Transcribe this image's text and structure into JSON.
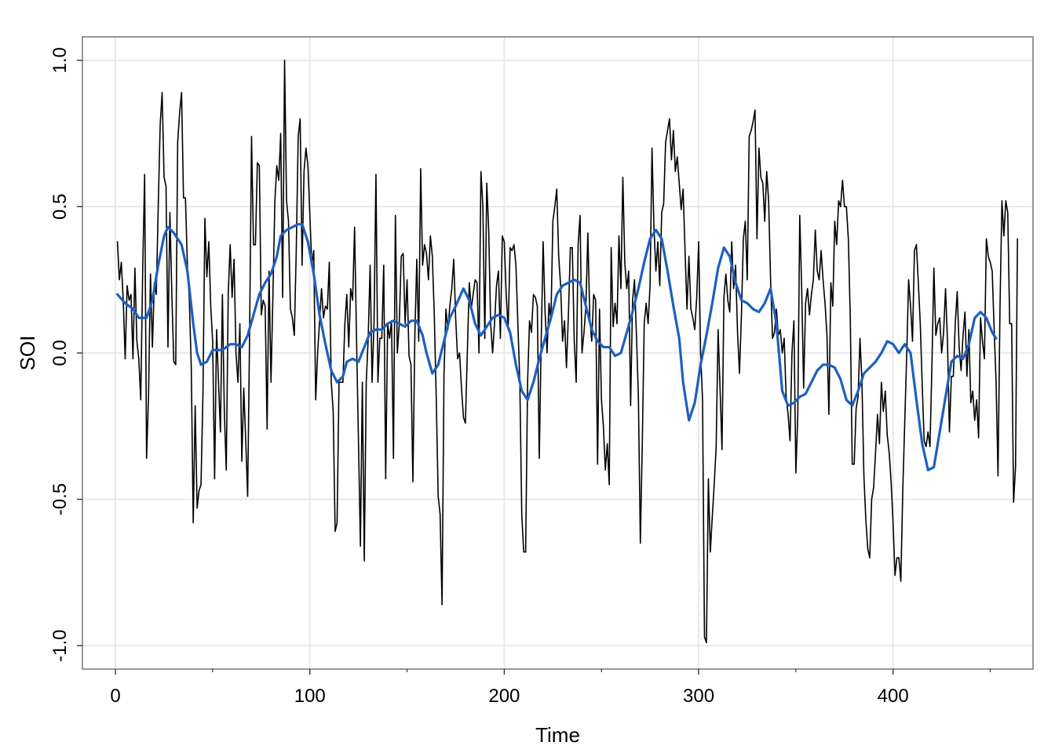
{
  "chart_data": {
    "type": "line",
    "xlabel": "Time",
    "ylabel": "SOI",
    "xlim": [
      -17,
      472
    ],
    "ylim": [
      -1.08,
      1.08
    ],
    "x_ticks": [
      0,
      100,
      200,
      300,
      400
    ],
    "x_minor_ticks": [
      50,
      150,
      250,
      350,
      450
    ],
    "y_ticks": [
      -1.0,
      -0.5,
      0.0,
      0.5,
      1.0
    ],
    "x_tick_labels": [
      "0",
      "100",
      "200",
      "300",
      "400"
    ],
    "y_tick_labels": [
      "-1.0",
      "-0.5",
      "0.0",
      "0.5",
      "1.0"
    ],
    "grid": true,
    "series": [
      {
        "color": "#000000",
        "x_start": 1,
        "x_step": 1,
        "values": [
          0.38,
          0.25,
          0.31,
          0.18,
          -0.02,
          0.23,
          0.18,
          0.2,
          -0.02,
          0.29,
          0.04,
          -0.02,
          -0.16,
          0.28,
          0.61,
          -0.36,
          -0.15,
          0.27,
          0.02,
          0.24,
          0.2,
          0.5,
          0.78,
          0.89,
          0.6,
          0.57,
          0.02,
          0.48,
          0.2,
          -0.03,
          -0.04,
          0.72,
          0.82,
          0.89,
          0.53,
          0.53,
          0.3,
          0.18,
          -0.05,
          -0.58,
          -0.18,
          -0.53,
          -0.47,
          -0.45,
          -0.14,
          0.46,
          0.26,
          0.38,
          0.16,
          0.04,
          -0.43,
          0.08,
          -0.1,
          -0.27,
          0.2,
          -0.2,
          -0.4,
          0.2,
          0.37,
          0.19,
          0.32,
          0.0,
          -0.1,
          0.1,
          -0.37,
          -0.12,
          -0.3,
          -0.49,
          0.07,
          0.74,
          0.37,
          0.37,
          0.65,
          0.64,
          0.13,
          0.18,
          0.16,
          -0.26,
          0.28,
          -0.1,
          0.2,
          0.52,
          0.64,
          0.59,
          0.75,
          0.19,
          1.0,
          0.52,
          0.45,
          0.15,
          0.12,
          0.06,
          0.35,
          0.74,
          0.8,
          0.3,
          0.62,
          0.7,
          0.64,
          0.47,
          0.3,
          0.35,
          -0.16,
          0.0,
          0.11,
          0.22,
          0.12,
          0.16,
          0.15,
          0.31,
          -0.1,
          -0.2,
          -0.61,
          -0.58,
          -0.1,
          -0.1,
          -0.1,
          0.1,
          0.2,
          0.02,
          0.22,
          0.18,
          0.43,
          0.05,
          -0.3,
          -0.66,
          -0.1,
          -0.71,
          -0.1,
          0.05,
          0.3,
          -0.1,
          0.1,
          0.61,
          -0.1,
          0.05,
          0.05,
          0.3,
          -0.43,
          0.1,
          0.05,
          0.11,
          -0.36,
          0.47,
          0.0,
          0.1,
          0.33,
          0.34,
          0.1,
          0.25,
          -0.01,
          -0.04,
          -0.44,
          0.06,
          0.32,
          0.04,
          0.63,
          0.3,
          0.37,
          0.34,
          0.25,
          0.4,
          0.33,
          0.13,
          -0.15,
          -0.49,
          -0.55,
          -0.86,
          -0.07,
          0.15,
          0.08,
          0.16,
          0.22,
          0.32,
          0.12,
          -0.02,
          0.0,
          -0.12,
          -0.22,
          -0.24,
          0.0,
          0.24,
          0.15,
          0.2,
          0.25,
          0.24,
          0.0,
          0.62,
          0.5,
          0.05,
          0.58,
          0.42,
          0.1,
          0.0,
          0.1,
          0.23,
          0.28,
          0.05,
          0.4,
          0.38,
          0.2,
          0.08,
          0.36,
          0.35,
          0.37,
          0.3,
          0.1,
          -0.1,
          -0.55,
          -0.68,
          -0.68,
          -0.1,
          0.11,
          0.07,
          0.2,
          0.19,
          0.16,
          -0.36,
          0.04,
          0.38,
          0.14,
          0.0,
          0.17,
          0.11,
          0.45,
          0.5,
          0.56,
          0.33,
          0.23,
          0.04,
          0.11,
          -0.05,
          0.13,
          0.36,
          0.36,
          0.04,
          -0.1,
          0.37,
          0.47,
          0.0,
          0.07,
          0.16,
          0.41,
          0.12,
          0.04,
          0.2,
          0.18,
          -0.38,
          0.15,
          -0.16,
          -0.25,
          -0.4,
          -0.31,
          -0.45,
          0.36,
          0.09,
          0.17,
          0.1,
          0.4,
          0.22,
          0.6,
          0.31,
          0.22,
          0.28,
          -0.18,
          0.18,
          0.25,
          0.06,
          -0.15,
          -0.65,
          -0.31,
          0.1,
          0.17,
          0.1,
          0.23,
          0.7,
          0.43,
          0.28,
          0.38,
          0.23,
          0.48,
          0.51,
          0.72,
          0.76,
          0.8,
          0.66,
          0.76,
          0.62,
          0.67,
          0.58,
          0.49,
          0.56,
          0.35,
          0.15,
          0.33,
          0.15,
          0.12,
          0.08,
          0.19,
          0.38,
          0.0,
          -0.16,
          -0.97,
          -0.99,
          -0.43,
          -0.68,
          -0.56,
          -0.45,
          -0.32,
          0.08,
          -0.12,
          -0.33,
          0.19,
          0.27,
          0.18,
          0.14,
          0.38,
          0.22,
          0.3,
          0.07,
          -0.07,
          0.13,
          0.39,
          0.45,
          0.25,
          0.74,
          0.76,
          0.79,
          0.83,
          0.39,
          0.7,
          0.6,
          0.58,
          0.45,
          0.62,
          0.52,
          0.25,
          0.05,
          0.07,
          0.15,
          0.06,
          0.08,
          0.0,
          0.05,
          -0.15,
          -0.21,
          -0.3,
          0.0,
          0.11,
          -0.41,
          -0.21,
          0.47,
          0.22,
          -0.12,
          0.17,
          0.22,
          0.13,
          0.2,
          0.25,
          0.42,
          0.28,
          0.25,
          0.35,
          0.25,
          0.17,
          0.06,
          -0.21,
          0.24,
          0.16,
          0.45,
          0.37,
          0.52,
          0.5,
          0.59,
          0.5,
          0.5,
          0.39,
          0.12,
          -0.38,
          -0.38,
          -0.19,
          -0.15,
          0.05,
          -0.1,
          -0.42,
          -0.57,
          -0.67,
          -0.7,
          -0.5,
          -0.46,
          -0.34,
          -0.21,
          -0.31,
          -0.1,
          -0.2,
          -0.13,
          -0.28,
          -0.34,
          -0.44,
          -0.58,
          -0.76,
          -0.7,
          -0.7,
          -0.78,
          -0.47,
          -0.24,
          -0.01,
          0.25,
          0.16,
          0.04,
          0.35,
          0.37,
          0.24,
          0.1,
          -0.11,
          -0.3,
          -0.32,
          -0.27,
          -0.32,
          -0.04,
          0.29,
          0.06,
          0.1,
          0.12,
          0.0,
          0.07,
          0.22,
          0.04,
          -0.27,
          -0.08,
          -0.08,
          0.1,
          0.21,
          0.02,
          -0.06,
          0.06,
          0.14,
          -0.08,
          0.08,
          -0.17,
          -0.13,
          -0.23,
          -0.16,
          -0.29,
          0.12,
          0.04,
          -0.02,
          0.39,
          0.33,
          0.31,
          0.28,
          0.08,
          -0.1,
          -0.42,
          0.15,
          0.52,
          0.4,
          0.52,
          0.48,
          0.1,
          0.1,
          -0.51,
          -0.39,
          0.39
        ]
      },
      {
        "color": "#1f5fbf",
        "values_xy": [
          [
            1,
            0.2
          ],
          [
            5,
            0.17
          ],
          [
            9,
            0.15
          ],
          [
            12,
            0.12
          ],
          [
            16,
            0.12
          ],
          [
            19,
            0.18
          ],
          [
            22,
            0.3
          ],
          [
            25,
            0.4
          ],
          [
            27,
            0.43
          ],
          [
            30,
            0.41
          ],
          [
            34,
            0.37
          ],
          [
            37,
            0.28
          ],
          [
            40,
            0.1
          ],
          [
            42,
            0.0
          ],
          [
            44,
            -0.04
          ],
          [
            47,
            -0.03
          ],
          [
            50,
            0.01
          ],
          [
            55,
            0.01
          ],
          [
            59,
            0.03
          ],
          [
            62,
            0.03
          ],
          [
            65,
            0.02
          ],
          [
            68,
            0.06
          ],
          [
            71,
            0.13
          ],
          [
            74,
            0.2
          ],
          [
            77,
            0.24
          ],
          [
            80,
            0.27
          ],
          [
            83,
            0.33
          ],
          [
            85,
            0.4
          ],
          [
            88,
            0.42
          ],
          [
            91,
            0.43
          ],
          [
            94,
            0.44
          ],
          [
            96,
            0.44
          ],
          [
            99,
            0.38
          ],
          [
            102,
            0.27
          ],
          [
            105,
            0.13
          ],
          [
            108,
            0.03
          ],
          [
            111,
            -0.06
          ],
          [
            114,
            -0.1
          ],
          [
            117,
            -0.08
          ],
          [
            119,
            -0.03
          ],
          [
            122,
            -0.02
          ],
          [
            125,
            -0.03
          ],
          [
            128,
            0.02
          ],
          [
            131,
            0.07
          ],
          [
            134,
            0.08
          ],
          [
            137,
            0.08
          ],
          [
            140,
            0.1
          ],
          [
            143,
            0.11
          ],
          [
            146,
            0.1
          ],
          [
            149,
            0.09
          ],
          [
            152,
            0.11
          ],
          [
            155,
            0.11
          ],
          [
            158,
            0.06
          ],
          [
            160,
            0.0
          ],
          [
            163,
            -0.07
          ],
          [
            166,
            -0.04
          ],
          [
            169,
            0.04
          ],
          [
            172,
            0.12
          ],
          [
            175,
            0.16
          ],
          [
            179,
            0.22
          ],
          [
            182,
            0.18
          ],
          [
            185,
            0.1
          ],
          [
            188,
            0.06
          ],
          [
            191,
            0.09
          ],
          [
            194,
            0.12
          ],
          [
            197,
            0.13
          ],
          [
            200,
            0.12
          ],
          [
            203,
            0.07
          ],
          [
            206,
            -0.04
          ],
          [
            209,
            -0.13
          ],
          [
            212,
            -0.16
          ],
          [
            215,
            -0.1
          ],
          [
            218,
            -0.02
          ],
          [
            221,
            0.05
          ],
          [
            224,
            0.12
          ],
          [
            227,
            0.2
          ],
          [
            230,
            0.23
          ],
          [
            233,
            0.24
          ],
          [
            236,
            0.25
          ],
          [
            239,
            0.24
          ],
          [
            242,
            0.16
          ],
          [
            245,
            0.08
          ],
          [
            248,
            0.04
          ],
          [
            251,
            0.02
          ],
          [
            254,
            0.02
          ],
          [
            257,
            -0.01
          ],
          [
            260,
            0.0
          ],
          [
            263,
            0.07
          ],
          [
            266,
            0.14
          ],
          [
            269,
            0.22
          ],
          [
            272,
            0.31
          ],
          [
            275,
            0.39
          ],
          [
            278,
            0.42
          ],
          [
            281,
            0.39
          ],
          [
            284,
            0.28
          ],
          [
            287,
            0.16
          ],
          [
            290,
            0.05
          ],
          [
            292,
            -0.1
          ],
          [
            295,
            -0.23
          ],
          [
            298,
            -0.17
          ],
          [
            301,
            -0.04
          ],
          [
            304,
            0.06
          ],
          [
            307,
            0.17
          ],
          [
            310,
            0.29
          ],
          [
            313,
            0.36
          ],
          [
            316,
            0.33
          ],
          [
            319,
            0.24
          ],
          [
            322,
            0.18
          ],
          [
            325,
            0.17
          ],
          [
            328,
            0.15
          ],
          [
            331,
            0.14
          ],
          [
            334,
            0.17
          ],
          [
            337,
            0.22
          ],
          [
            340,
            0.1
          ],
          [
            343,
            -0.13
          ],
          [
            346,
            -0.18
          ],
          [
            349,
            -0.17
          ],
          [
            352,
            -0.15
          ],
          [
            355,
            -0.14
          ],
          [
            358,
            -0.1
          ],
          [
            361,
            -0.06
          ],
          [
            364,
            -0.04
          ],
          [
            367,
            -0.04
          ],
          [
            370,
            -0.05
          ],
          [
            373,
            -0.09
          ],
          [
            376,
            -0.16
          ],
          [
            379,
            -0.18
          ],
          [
            382,
            -0.13
          ],
          [
            385,
            -0.07
          ],
          [
            388,
            -0.05
          ],
          [
            391,
            -0.03
          ],
          [
            394,
            0.0
          ],
          [
            397,
            0.04
          ],
          [
            400,
            0.03
          ],
          [
            403,
            0.0
          ],
          [
            406,
            0.03
          ],
          [
            409,
            0.0
          ],
          [
            412,
            -0.16
          ],
          [
            415,
            -0.31
          ],
          [
            418,
            -0.4
          ],
          [
            421,
            -0.39
          ],
          [
            424,
            -0.27
          ],
          [
            427,
            -0.15
          ],
          [
            430,
            -0.03
          ],
          [
            433,
            -0.01
          ],
          [
            436,
            -0.02
          ],
          [
            439,
            0.03
          ],
          [
            442,
            0.12
          ],
          [
            445,
            0.14
          ],
          [
            448,
            0.12
          ],
          [
            451,
            0.07
          ],
          [
            453,
            0.05
          ]
        ]
      }
    ]
  }
}
